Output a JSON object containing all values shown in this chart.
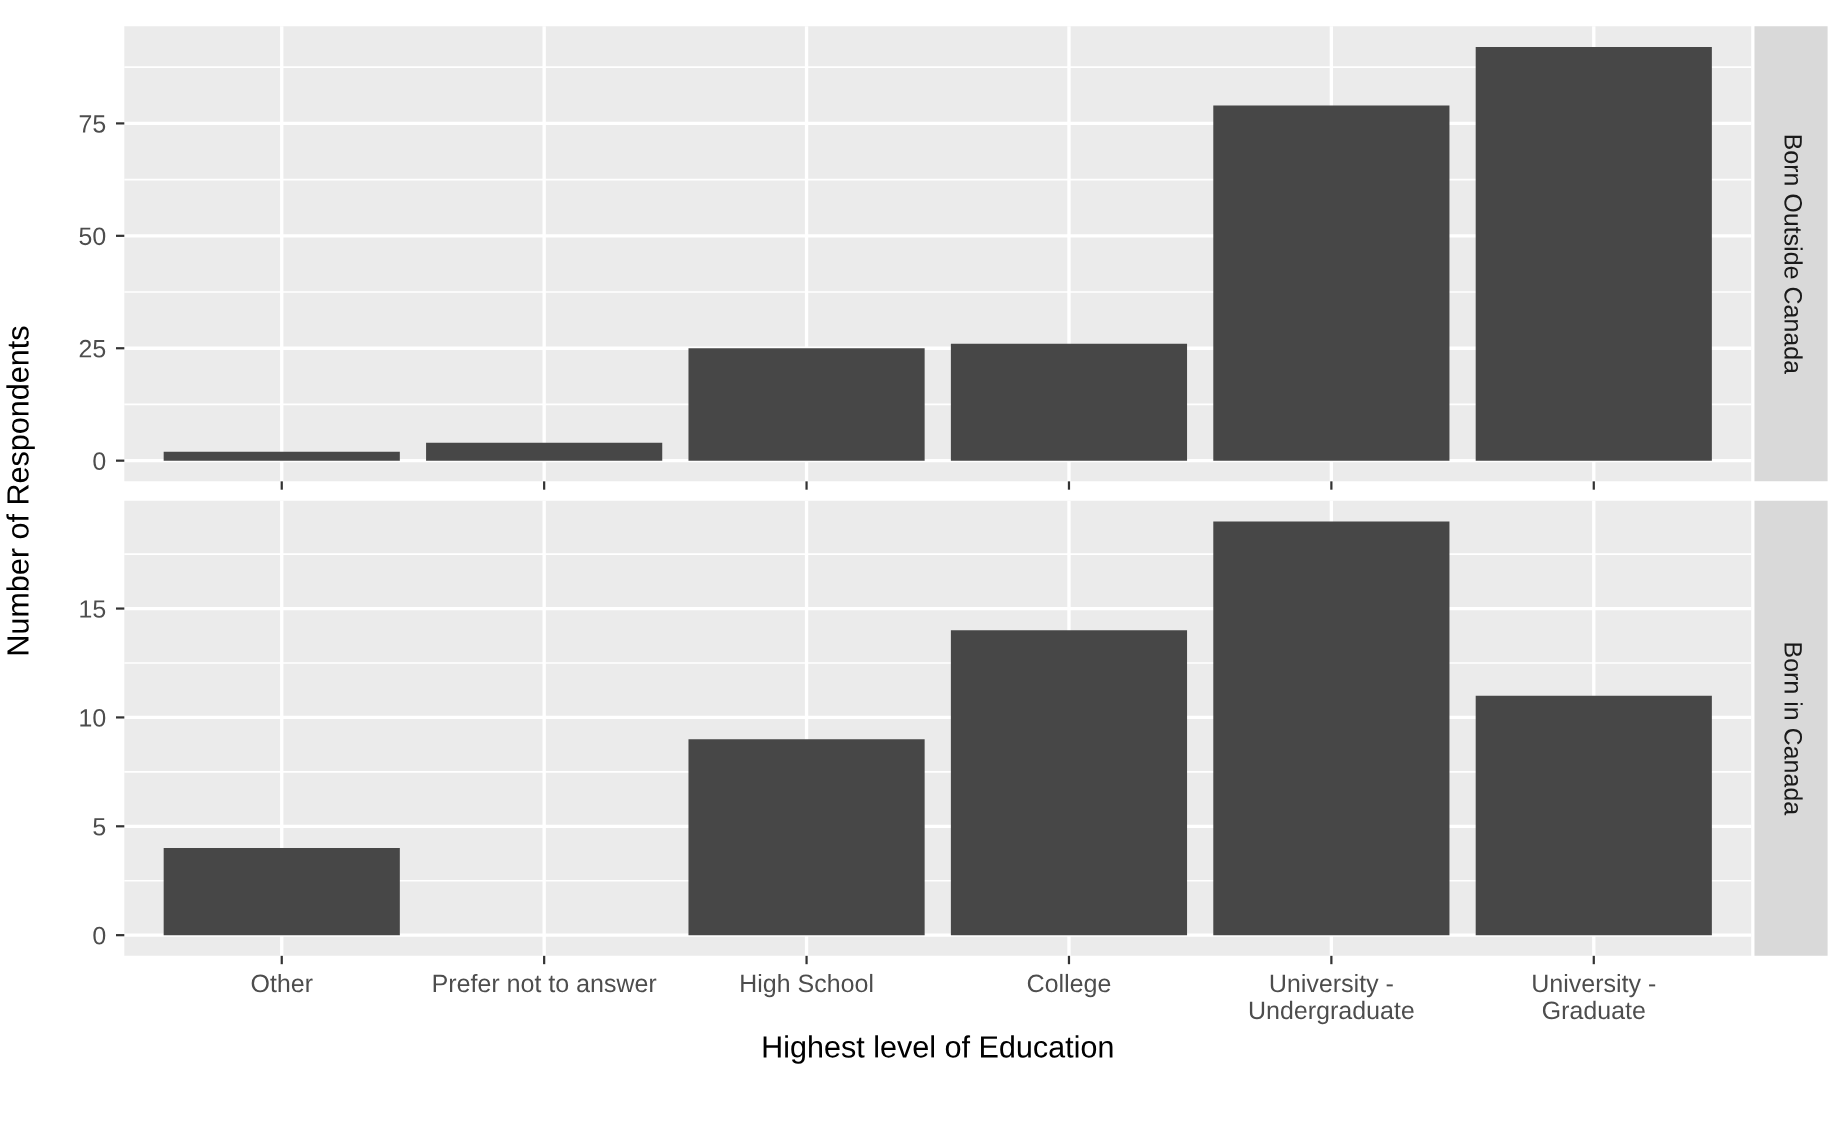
{
  "chart_data": [
    {
      "type": "bar",
      "y2label": "Born Outside Canada",
      "ylabel": "Number of Respondents",
      "categories": [
        null,
        null,
        null,
        null,
        null,
        null
      ],
      "values": [
        2,
        4,
        25,
        26,
        79,
        92
      ],
      "color": "#474747",
      "ylim": [
        -4.6,
        96.6
      ],
      "yticks": [
        0,
        25,
        50,
        75
      ],
      "grid": true,
      "tick_labels": "y"
    },
    {
      "type": "bar",
      "y2label": "Born in Canada",
      "xlabel": "Highest level of Education",
      "categories": [
        "Other",
        "Prefer not to answer",
        "High School",
        "College",
        "University -\nUndergraduate",
        "University -\nGraduate"
      ],
      "values": [
        4,
        0,
        9,
        14,
        19,
        11
      ],
      "color": "#474747",
      "ylim": [
        -0.95,
        19.95
      ],
      "yticks": [
        0,
        5,
        10,
        15
      ],
      "grid": true
    }
  ]
}
